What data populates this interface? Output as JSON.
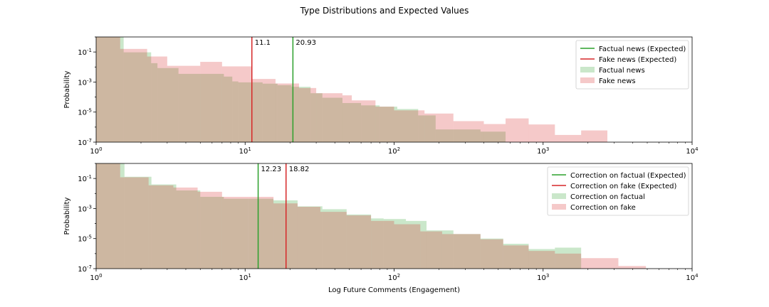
{
  "figure_title": "Type Distributions and Expected Values",
  "colors": {
    "factual": "#2ca02c",
    "fake": "#d62728",
    "factual_fill": "#2ca02c",
    "fake_fill": "#d62728"
  },
  "chart_data": [
    {
      "type": "histogram",
      "title": "",
      "xlabel": "",
      "ylabel": "Probability",
      "xscale": "log",
      "yscale": "log",
      "xlim": [
        1,
        10000
      ],
      "ylim": [
        1e-07,
        1
      ],
      "xticks": [
        "10^0",
        "10^1",
        "10^2",
        "10^3",
        "10^4"
      ],
      "yticks": [
        "10^-7",
        "10^-5",
        "10^-3",
        "10^-1"
      ],
      "legend_position": "top-right",
      "series": [
        {
          "name": "Factual news",
          "color_key": "factual_fill",
          "edges": [
            1,
            1.53,
            2.34,
            2.58,
            3.57,
            7.2,
            8.2,
            9.0,
            13.1,
            16.5,
            20.5,
            27.5,
            33.0,
            45.0,
            60.0,
            80.0,
            105.0,
            145.0,
            190.0,
            250.0,
            380.0,
            560.0
          ],
          "values": [
            1.0,
            0.095,
            0.018,
            0.0085,
            0.0035,
            0.0023,
            0.0011,
            0.00095,
            0.00078,
            0.00062,
            0.00048,
            0.00018,
            9e-05,
            4e-05,
            2.8e-05,
            2.3e-05,
            1.6e-05,
            6e-06,
            7e-07,
            7e-07,
            5e-07
          ]
        },
        {
          "name": "Fake news",
          "color_key": "fake_fill",
          "edges": [
            1,
            1.45,
            2.2,
            3.0,
            5.0,
            7.0,
            11.0,
            16.0,
            23.0,
            30.0,
            45.0,
            52.0,
            75.0,
            100.0,
            160.0,
            250.0,
            400.0,
            560.0,
            800.0,
            1200.0,
            1800.0,
            2700.0
          ],
          "values": [
            1.0,
            0.16,
            0.05,
            0.012,
            0.022,
            0.011,
            0.0016,
            0.0008,
            0.0004,
            0.00018,
            0.00013,
            6e-05,
            2.3e-05,
            1.3e-05,
            8e-06,
            2.5e-06,
            1.6e-06,
            3.8e-06,
            1.5e-06,
            3e-07,
            6e-07
          ]
        }
      ],
      "lines": [
        {
          "name": "Factual news (Expected)",
          "x": 20.93,
          "label": "20.93",
          "color_key": "factual"
        },
        {
          "name": "Fake news (Expected)",
          "x": 11.1,
          "label": "11.1",
          "color_key": "fake"
        }
      ]
    },
    {
      "type": "histogram",
      "title": "",
      "xlabel": "Log Future Comments (Engagement)",
      "ylabel": "Probability",
      "xscale": "log",
      "yscale": "log",
      "xlim": [
        1,
        10000
      ],
      "ylim": [
        1e-07,
        1
      ],
      "xticks": [
        "10^0",
        "10^1",
        "10^2",
        "10^3",
        "10^4"
      ],
      "yticks": [
        "10^-7",
        "10^-5",
        "10^-3",
        "10^-1"
      ],
      "legend_position": "top-right",
      "series": [
        {
          "name": "Correction on factual",
          "color_key": "factual_fill",
          "edges": [
            1,
            1.55,
            2.35,
            3.45,
            5.0,
            7.2,
            10.5,
            15.5,
            22.5,
            33.0,
            48.0,
            70.0,
            85.0,
            120.0,
            165.0,
            250.0,
            380.0,
            540.0,
            800.0,
            1200.0,
            1800.0
          ],
          "values": [
            1.0,
            0.13,
            0.04,
            0.016,
            0.006,
            0.0045,
            0.0045,
            0.0035,
            0.0014,
            0.0009,
            0.0004,
            0.00022,
            0.0002,
            0.00015,
            3.5e-05,
            2e-05,
            1e-05,
            4.5e-06,
            2e-06,
            2.5e-06
          ]
        },
        {
          "name": "Correction on fake",
          "color_key": "fake_fill",
          "edges": [
            1,
            1.45,
            2.25,
            3.3,
            4.8,
            7.0,
            10.5,
            15.5,
            22.5,
            32.0,
            48.0,
            70.0,
            100.0,
            150.0,
            210.0,
            380.0,
            540.0,
            800.0,
            1200.0,
            1800.0,
            3200.0,
            4900.0
          ],
          "values": [
            1.0,
            0.12,
            0.035,
            0.025,
            0.013,
            0.006,
            0.006,
            0.0022,
            0.0013,
            0.0006,
            0.00035,
            0.00015,
            9e-05,
            3e-05,
            2e-05,
            9e-06,
            3.5e-06,
            1.5e-06,
            1e-06,
            5e-07,
            1.5e-07
          ]
        }
      ],
      "lines": [
        {
          "name": "Correction on factual (Expected)",
          "x": 12.23,
          "label": "12.23",
          "color_key": "factual"
        },
        {
          "name": "Correction on fake (Expected)",
          "x": 18.82,
          "label": "18.82",
          "color_key": "fake"
        }
      ]
    }
  ]
}
